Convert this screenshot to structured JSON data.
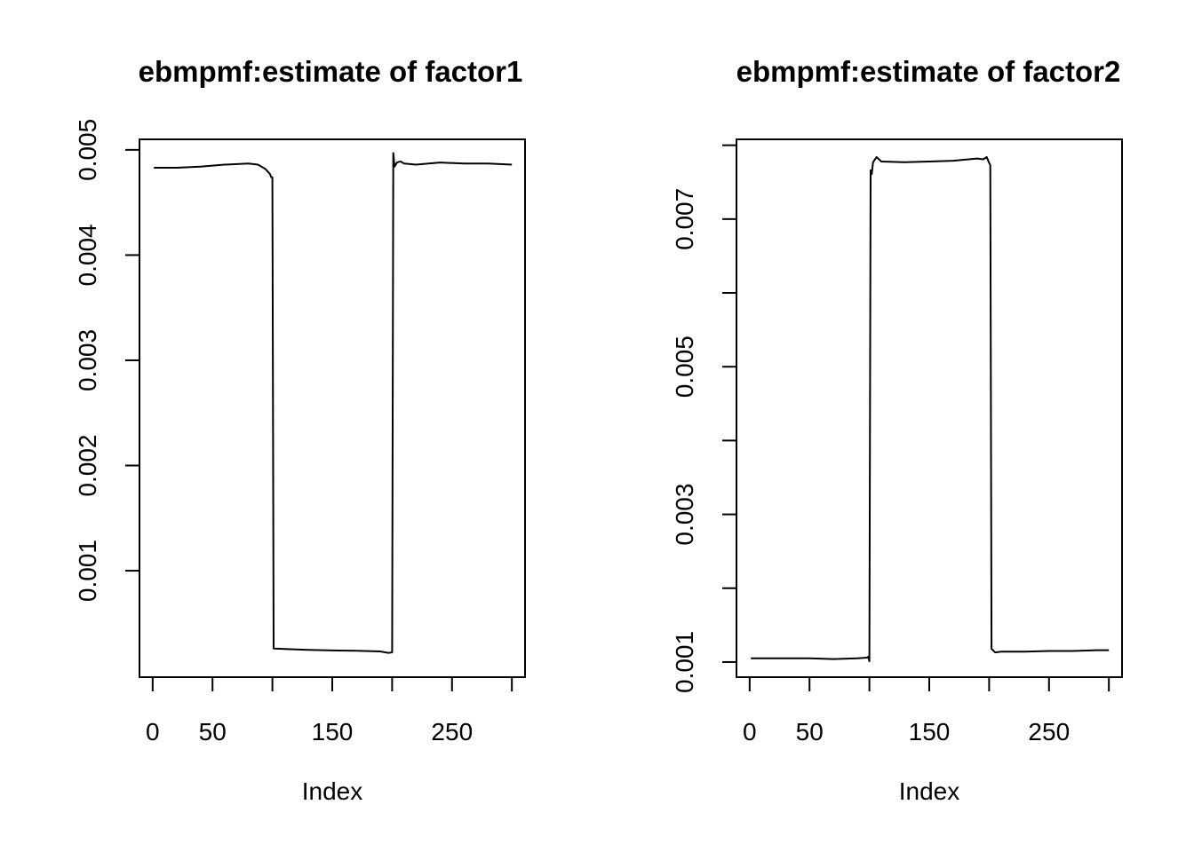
{
  "chart_data": [
    {
      "type": "line",
      "title": "ebmpmf:estimate of factor1",
      "xlabel": "Index",
      "ylabel": "",
      "xlim": [
        -11,
        311
      ],
      "ylim": [
        -1.16e-05,
        0.0051
      ],
      "x_ticks": [
        0,
        50,
        100,
        150,
        200,
        250,
        300
      ],
      "x_tick_labels": [
        {
          "value": 0,
          "label": "0"
        },
        {
          "value": 50,
          "label": "50"
        },
        {
          "value": 150,
          "label": "150"
        },
        {
          "value": 250,
          "label": "250"
        }
      ],
      "y_ticks": [
        0.001,
        0.002,
        0.003,
        0.004,
        0.005
      ],
      "y_tick_labels": [
        "0.001",
        "0.002",
        "0.003",
        "0.004",
        "0.005"
      ],
      "grid": false,
      "series": [
        {
          "x": [
            1,
            20,
            40,
            60,
            80,
            88,
            94,
            98,
            99,
            100,
            101,
            104,
            110,
            130,
            150,
            170,
            190,
            197,
            200,
            201,
            202,
            204,
            207,
            210,
            220,
            240,
            260,
            280,
            300
          ],
          "y": [
            0.00483,
            0.00483,
            0.00484,
            0.00486,
            0.00487,
            0.00486,
            0.00482,
            0.00477,
            0.00474,
            0.00474,
            0.000261,
            0.000259,
            0.000257,
            0.000248,
            0.000242,
            0.000239,
            0.000233,
            0.000219,
            0.000225,
            0.00497,
            0.00484,
            0.00488,
            0.00489,
            0.00487,
            0.00486,
            0.00488,
            0.00487,
            0.00487,
            0.00486
          ]
        }
      ]
    },
    {
      "type": "line",
      "title": "ebmpmf:estimate of factor2",
      "xlabel": "Index",
      "ylabel": "",
      "xlim": [
        -11,
        311
      ],
      "ylim": [
        0.000795,
        0.00808
      ],
      "x_ticks": [
        0,
        50,
        100,
        150,
        200,
        250,
        300
      ],
      "x_tick_labels": [
        {
          "value": 0,
          "label": "0"
        },
        {
          "value": 50,
          "label": "50"
        },
        {
          "value": 150,
          "label": "150"
        },
        {
          "value": 250,
          "label": "250"
        }
      ],
      "y_ticks": [
        0.001,
        0.002,
        0.003,
        0.004,
        0.005,
        0.006,
        0.007,
        0.008
      ],
      "y_tick_labels": [
        "0.001",
        "",
        "0.003",
        "",
        "0.005",
        "",
        "0.007",
        ""
      ],
      "grid": false,
      "series": [
        {
          "x": [
            1,
            30,
            50,
            70,
            90,
            98,
            99,
            100,
            101,
            102,
            103,
            106,
            110,
            130,
            150,
            170,
            190,
            195,
            198,
            200,
            201,
            202,
            205,
            210,
            230,
            250,
            270,
            290,
            300
          ],
          "y": [
            0.00105,
            0.00105,
            0.00105,
            0.00104,
            0.00105,
            0.00106,
            0.00107,
            0.00101,
            0.00766,
            0.00761,
            0.00777,
            0.00784,
            0.00778,
            0.00777,
            0.00778,
            0.00779,
            0.00782,
            0.00781,
            0.00784,
            0.00776,
            0.00773,
            0.00118,
            0.00113,
            0.00114,
            0.00114,
            0.00115,
            0.00115,
            0.00116,
            0.00116
          ]
        }
      ]
    }
  ]
}
